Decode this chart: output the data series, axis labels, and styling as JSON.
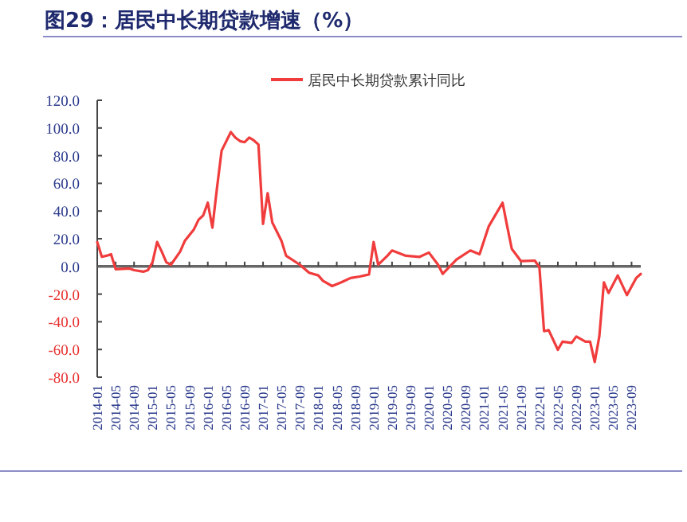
{
  "chart_data": {
    "type": "line",
    "title": "图29：居民中长期贷款增速（%）",
    "x": [
      "2014-01",
      "2014-02",
      "2014-03",
      "2014-04",
      "2014-05",
      "2014-08",
      "2014-09",
      "2014-11",
      "2014-12",
      "2015-01",
      "2015-02",
      "2015-03",
      "2015-04",
      "2015-05",
      "2015-07",
      "2015-08",
      "2015-10",
      "2015-11",
      "2015-12",
      "2016-01",
      "2016-02",
      "2016-03",
      "2016-04",
      "2016-06",
      "2016-07",
      "2016-08",
      "2016-09",
      "2016-10",
      "2016-11",
      "2016-12",
      "2017-01",
      "2017-02",
      "2017-03",
      "2017-05",
      "2017-06",
      "2017-09",
      "2017-11",
      "2018-01",
      "2018-02",
      "2018-04",
      "2018-06",
      "2018-08",
      "2018-10",
      "2018-12",
      "2019-01",
      "2019-02",
      "2019-04",
      "2019-05",
      "2019-08",
      "2019-11",
      "2020-01",
      "2020-03",
      "2020-04",
      "2020-07",
      "2020-10",
      "2020-12",
      "2021-02",
      "2021-05",
      "2021-06",
      "2021-07",
      "2021-09",
      "2021-12",
      "2022-01",
      "2022-02",
      "2022-03",
      "2022-05",
      "2022-06",
      "2022-08",
      "2022-09",
      "2022-11",
      "2022-12",
      "2023-01",
      "2023-02",
      "2023-03",
      "2023-04",
      "2023-06",
      "2023-08",
      "2023-10",
      "2023-11"
    ],
    "series": [
      {
        "name": "居民中长期贷款累计同比",
        "color": "#f03c3c",
        "values": [
          17.6,
          6.9,
          7.7,
          8.8,
          -2.0,
          -1.5,
          -2.7,
          -3.8,
          -2.7,
          3.0,
          17.6,
          10.7,
          3.0,
          1.2,
          10.7,
          18.4,
          26.8,
          33.7,
          36.8,
          46.0,
          28.0,
          56.7,
          83.6,
          97.0,
          93.0,
          90.5,
          89.7,
          93.0,
          91.0,
          88.0,
          30.7,
          52.9,
          31.8,
          18.4,
          7.7,
          1.2,
          -4.6,
          -6.5,
          -10.4,
          -14.2,
          -11.5,
          -8.4,
          -7.3,
          -5.8,
          17.6,
          1.2,
          7.7,
          11.5,
          7.7,
          6.9,
          10.0,
          1.2,
          -5.4,
          5.0,
          11.5,
          8.8,
          29.0,
          46.0,
          29.0,
          12.7,
          3.8,
          4.2,
          -0.8,
          -46.8,
          -46.0,
          -60.2,
          -54.4,
          -55.2,
          -50.6,
          -54.4,
          -54.4,
          -69.0,
          -50.6,
          -11.5,
          -19.2,
          -6.5,
          -20.7,
          -8.4,
          -5.4
        ]
      }
    ],
    "xlim": [
      "2014-01",
      "2023-11"
    ],
    "xticks": [
      "2014-01",
      "2014-05",
      "2014-09",
      "2015-01",
      "2015-05",
      "2015-09",
      "2016-01",
      "2016-05",
      "2016-09",
      "2017-01",
      "2017-05",
      "2017-09",
      "2018-01",
      "2018-05",
      "2018-09",
      "2019-01",
      "2019-05",
      "2019-09",
      "2020-01",
      "2020-05",
      "2020-09",
      "2021-01",
      "2021-05",
      "2021-09",
      "2022-01",
      "2022-05",
      "2022-09",
      "2023-01",
      "2023-05",
      "2023-09"
    ],
    "ylim": [
      -80,
      120
    ],
    "yticks": [
      {
        "value": 120,
        "label": "120.0"
      },
      {
        "value": 100,
        "label": "100.0"
      },
      {
        "value": 80,
        "label": "80.0"
      },
      {
        "value": 60,
        "label": "60.0"
      },
      {
        "value": 40,
        "label": "40.0"
      },
      {
        "value": 20,
        "label": "20.0"
      },
      {
        "value": 0,
        "label": "0.0"
      },
      {
        "value": -20,
        "label": "-20.0"
      },
      {
        "value": -40,
        "label": "-40.0"
      },
      {
        "value": -60,
        "label": "-60.0"
      },
      {
        "value": -80,
        "label": "-80.0"
      }
    ],
    "legend": "top"
  }
}
